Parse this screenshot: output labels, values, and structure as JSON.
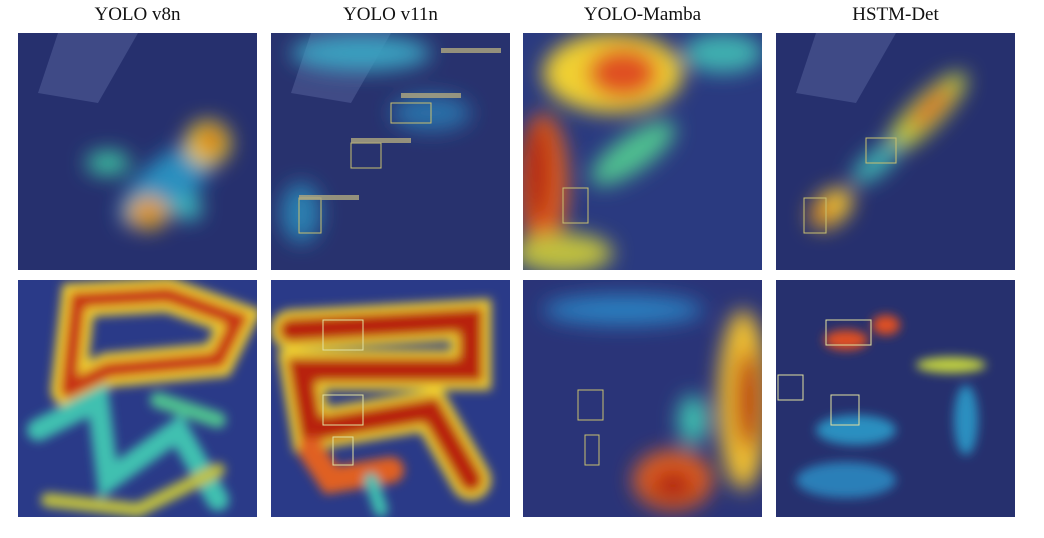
{
  "columns": [
    {
      "title": "YOLO v8n"
    },
    {
      "title": "YOLO v11n"
    },
    {
      "title": "YOLO-Mamba"
    },
    {
      "title": "HSTM-Det"
    }
  ]
}
